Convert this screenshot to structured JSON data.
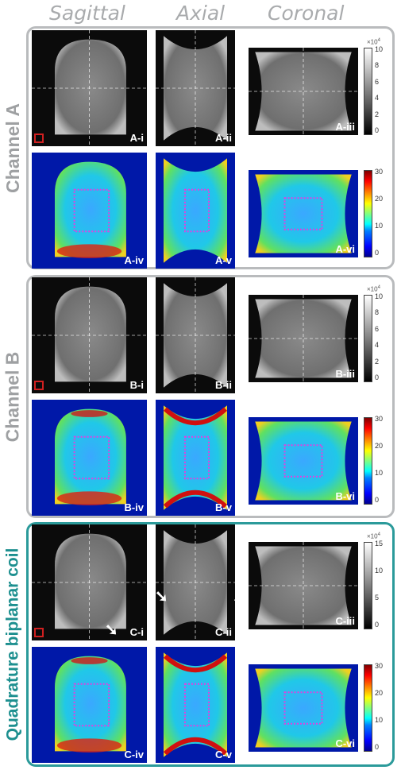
{
  "column_headers": {
    "sagittal": "Sagittal",
    "axial": "Axial",
    "coronal": "Coronal"
  },
  "rows": [
    {
      "title": "Channel A",
      "labels": [
        "A-i",
        "A-ii",
        "A-iii",
        "A-iv",
        "A-v",
        "A-vi"
      ],
      "gray_bar": {
        "exponent": "×10",
        "exponent_power": "4",
        "ticks": [
          "10",
          "8",
          "6",
          "4",
          "2",
          "0"
        ]
      },
      "jet_bar": {
        "ticks": [
          "30",
          "20",
          "10",
          "0"
        ]
      }
    },
    {
      "title": "Channel B",
      "labels": [
        "B-i",
        "B-ii",
        "B-iii",
        "B-iv",
        "B-v",
        "B-vi"
      ],
      "gray_bar": {
        "exponent": "×10",
        "exponent_power": "4",
        "ticks": [
          "10",
          "8",
          "6",
          "4",
          "2",
          "0"
        ]
      },
      "jet_bar": {
        "ticks": [
          "30",
          "20",
          "10",
          "0"
        ]
      }
    },
    {
      "title": "Quadrature biplanar coil",
      "labels": [
        "C-i",
        "C-ii",
        "C-iii",
        "C-iv",
        "C-v",
        "C-vi"
      ],
      "gray_bar": {
        "exponent": "×10",
        "exponent_power": "4",
        "ticks": [
          "15",
          "10",
          "5",
          "0"
        ]
      },
      "jet_bar": {
        "ticks": [
          "30",
          "20",
          "10",
          "0"
        ]
      }
    }
  ],
  "colors": {
    "gray_frame": "#b9bbbd",
    "teal_frame": "#2b9a9a",
    "roi": "#e040e0",
    "marker": "#d02020"
  }
}
